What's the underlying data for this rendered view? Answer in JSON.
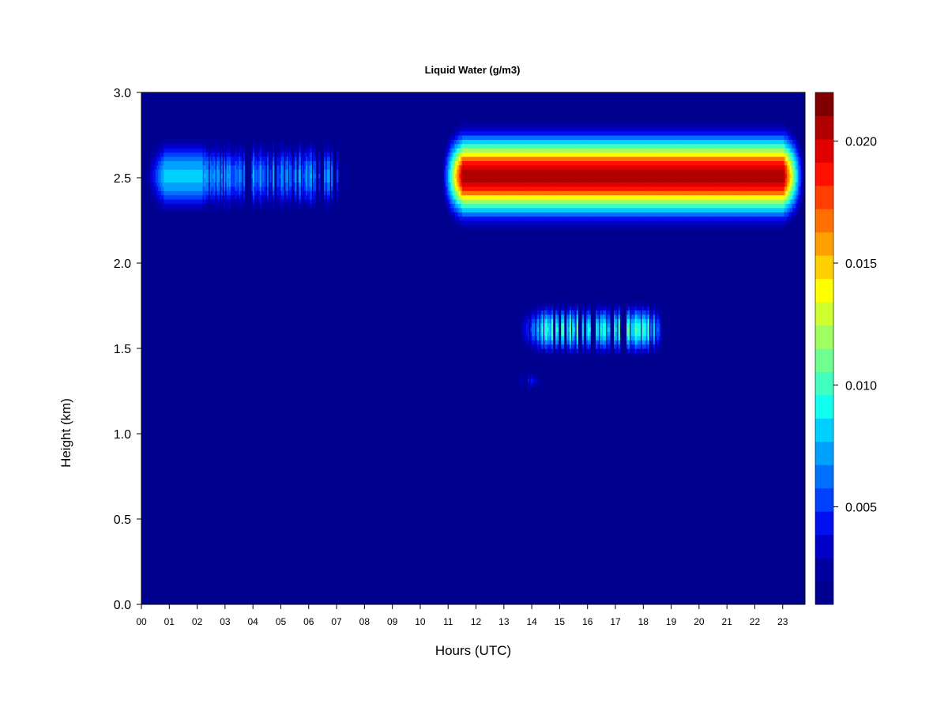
{
  "chart_data": {
    "type": "heatmap",
    "title": "Liquid Water (g/m3)",
    "xlabel": "Hours (UTC)",
    "ylabel": "Height (km)",
    "xlim": [
      0,
      23.8
    ],
    "ylim": [
      0.0,
      3.0
    ],
    "x_tick_labels": [
      "00",
      "01",
      "02",
      "03",
      "04",
      "05",
      "06",
      "07",
      "08",
      "09",
      "10",
      "11",
      "12",
      "13",
      "14",
      "15",
      "16",
      "17",
      "18",
      "19",
      "20",
      "21",
      "22",
      "23"
    ],
    "y_tick_labels": [
      "0.0",
      "0.5",
      "1.0",
      "1.5",
      "2.0",
      "2.5",
      "3.0"
    ],
    "colorbar": {
      "range": [
        0.001,
        0.022
      ],
      "tick_values": [
        0.005,
        0.01,
        0.015,
        0.02
      ],
      "tick_labels": [
        "0.005",
        "0.010",
        "0.015",
        "0.020"
      ],
      "colors": [
        "#00008F",
        "#0000A0",
        "#0000C8",
        "#0010F0",
        "#0040FF",
        "#0070FF",
        "#00A0FF",
        "#00D0FF",
        "#10FFEF",
        "#40FFBF",
        "#70FF8F",
        "#A0FF60",
        "#D0FF30",
        "#FFFF00",
        "#FFD000",
        "#FFA000",
        "#FF7000",
        "#FF4000",
        "#FF1000",
        "#E00000",
        "#B00000",
        "#800000"
      ]
    },
    "cloud_layers": [
      {
        "name_hint": "upper layer",
        "x_start": 0.0,
        "x_end": 7.6,
        "y_center": 2.5,
        "y_half_width": 0.2,
        "peak": 0.008,
        "intermittent_from": 2.2
      },
      {
        "name_hint": "upper layer",
        "x_start": 10.7,
        "x_end": 23.8,
        "y_center": 2.5,
        "y_half_width": 0.22,
        "peak": 0.021,
        "intermittent_from": 99
      },
      {
        "name_hint": "lower layer",
        "x_start": 13.4,
        "x_end": 19.0,
        "y_center": 1.6,
        "y_half_width": 0.14,
        "peak": 0.011,
        "intermittent_from": 13.4
      },
      {
        "name_hint": "lower fragment",
        "x_start": 13.2,
        "x_end": 14.6,
        "y_center": 1.3,
        "y_half_width": 0.06,
        "peak": 0.007,
        "intermittent_from": 13.2
      }
    ]
  }
}
